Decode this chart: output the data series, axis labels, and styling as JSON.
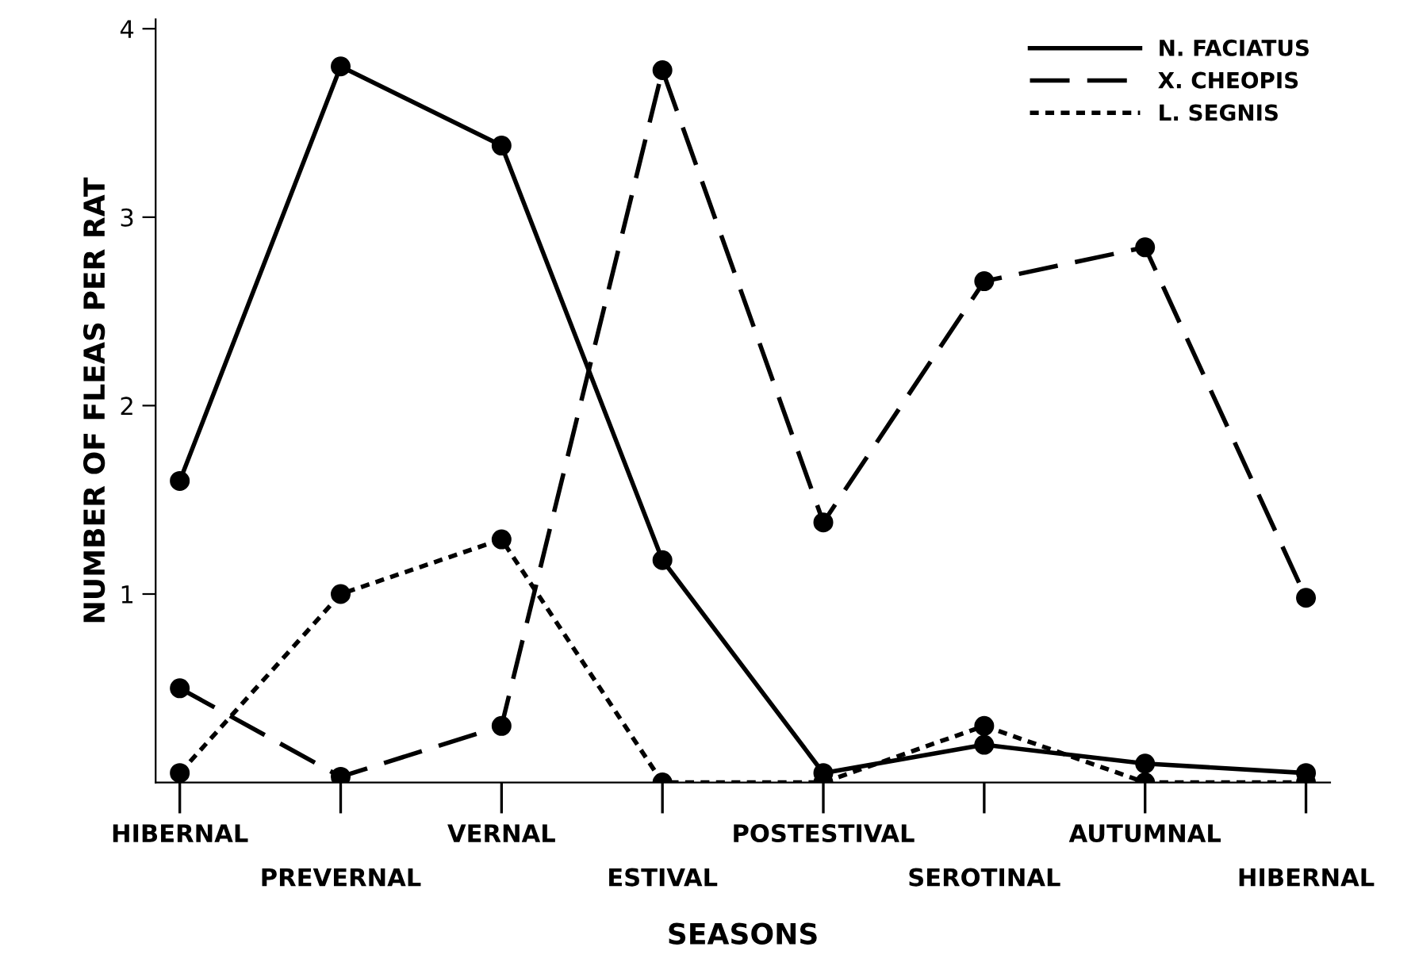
{
  "chart_data": {
    "type": "line",
    "xlabel": "SEASONS",
    "ylabel": "NUMBER OF FLEAS PER RAT",
    "categories": [
      "HIBERNAL",
      "PREVERNAL",
      "VERNAL",
      "ESTIVAL",
      "POSTESTIVAL",
      "SEROTINAL",
      "AUTUMNAL",
      "HIBERNAL"
    ],
    "series": [
      {
        "name": "N. FACIATUS",
        "color": "#000000",
        "line_style": "solid",
        "values": [
          1.6,
          3.8,
          3.38,
          1.18,
          0.05,
          0.2,
          0.1,
          0.05
        ]
      },
      {
        "name": "X. CHEOPIS",
        "color": "#000000",
        "line_style": "dashed",
        "values": [
          0.5,
          0.03,
          0.3,
          3.78,
          1.38,
          2.66,
          2.84,
          0.98
        ]
      },
      {
        "name": "L. SEGNIS",
        "color": "#000000",
        "line_style": "dotted",
        "values": [
          0.05,
          1.0,
          1.29,
          0.0,
          0.0,
          0.3,
          0.0,
          0.0
        ]
      }
    ],
    "ylim": [
      0,
      4.05
    ],
    "yticks": [
      1,
      2,
      3,
      4
    ],
    "marker": "circle",
    "grid": false,
    "legend": "top right"
  }
}
